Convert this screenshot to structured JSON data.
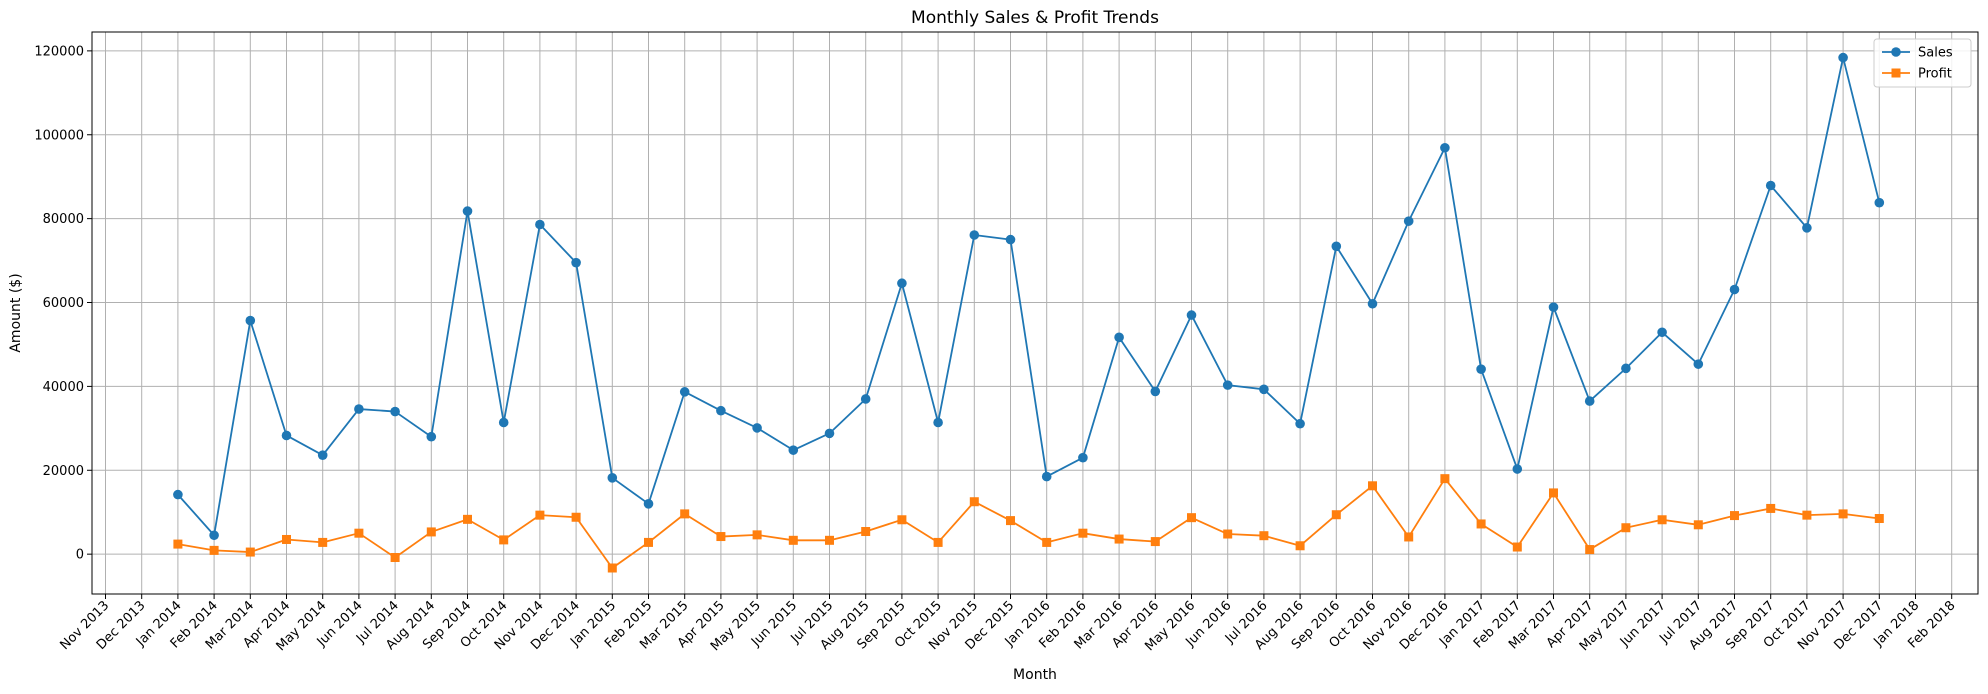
{
  "chart_data": {
    "type": "line",
    "title": "Monthly Sales & Profit Trends",
    "xlabel": "Month",
    "ylabel": "Amount ($)",
    "grid": true,
    "legend_position": "top-right",
    "x_ticks": [
      "Nov 2013",
      "Dec 2013",
      "Jan 2014",
      "Feb 2014",
      "Mar 2014",
      "Apr 2014",
      "May 2014",
      "Jun 2014",
      "Jul 2014",
      "Aug 2014",
      "Sep 2014",
      "Oct 2014",
      "Nov 2014",
      "Dec 2014",
      "Jan 2015",
      "Feb 2015",
      "Mar 2015",
      "Apr 2015",
      "May 2015",
      "Jun 2015",
      "Jul 2015",
      "Aug 2015",
      "Sep 2015",
      "Oct 2015",
      "Nov 2015",
      "Dec 2015",
      "Jan 2016",
      "Feb 2016",
      "Mar 2016",
      "Apr 2016",
      "May 2016",
      "Jun 2016",
      "Jul 2016",
      "Aug 2016",
      "Sep 2016",
      "Oct 2016",
      "Nov 2016",
      "Dec 2016",
      "Jan 2017",
      "Feb 2017",
      "Mar 2017",
      "Apr 2017",
      "May 2017",
      "Jun 2017",
      "Jul 2017",
      "Aug 2017",
      "Sep 2017",
      "Oct 2017",
      "Nov 2017",
      "Dec 2017",
      "Jan 2018",
      "Feb 2018"
    ],
    "x": [
      "Jan 2014",
      "Feb 2014",
      "Mar 2014",
      "Apr 2014",
      "May 2014",
      "Jun 2014",
      "Jul 2014",
      "Aug 2014",
      "Sep 2014",
      "Oct 2014",
      "Nov 2014",
      "Dec 2014",
      "Jan 2015",
      "Feb 2015",
      "Mar 2015",
      "Apr 2015",
      "May 2015",
      "Jun 2015",
      "Jul 2015",
      "Aug 2015",
      "Sep 2015",
      "Oct 2015",
      "Nov 2015",
      "Dec 2015",
      "Jan 2016",
      "Feb 2016",
      "Mar 2016",
      "Apr 2016",
      "May 2016",
      "Jun 2016",
      "Jul 2016",
      "Aug 2016",
      "Sep 2016",
      "Oct 2016",
      "Nov 2016",
      "Dec 2016",
      "Jan 2017",
      "Feb 2017",
      "Mar 2017",
      "Apr 2017",
      "May 2017",
      "Jun 2017",
      "Jul 2017",
      "Aug 2017",
      "Sep 2017",
      "Oct 2017",
      "Nov 2017",
      "Dec 2017"
    ],
    "y_ticks": [
      0,
      20000,
      40000,
      60000,
      80000,
      100000,
      120000
    ],
    "ylim": [
      -9500,
      124500
    ],
    "series": [
      {
        "name": "Sales",
        "color": "#1f77b4",
        "marker": "circle",
        "values": [
          14200,
          4500,
          55700,
          28300,
          23600,
          34600,
          34000,
          28000,
          81800,
          31400,
          78600,
          69500,
          18200,
          12000,
          38700,
          34200,
          30100,
          24800,
          28800,
          37000,
          64600,
          31400,
          76100,
          75000,
          18500,
          23000,
          51700,
          38800,
          57000,
          40300,
          39300,
          31100,
          73400,
          59700,
          79400,
          96900,
          44100,
          20300,
          58900,
          36500,
          44300,
          52900,
          45300,
          63100,
          87900,
          77800,
          118400,
          83800
        ]
      },
      {
        "name": "Profit",
        "color": "#ff7f0e",
        "marker": "square",
        "values": [
          2400,
          900,
          500,
          3500,
          2800,
          5000,
          -800,
          5300,
          8300,
          3400,
          9300,
          8800,
          -3300,
          2800,
          9600,
          4200,
          4600,
          3300,
          3300,
          5400,
          8200,
          2800,
          12500,
          8000,
          2800,
          5000,
          3600,
          3000,
          8700,
          4800,
          4400,
          2000,
          9400,
          16300,
          4100,
          18000,
          7200,
          1700,
          14600,
          1100,
          6300,
          8200,
          7000,
          9200,
          10900,
          9300,
          9600,
          8500
        ]
      }
    ]
  }
}
